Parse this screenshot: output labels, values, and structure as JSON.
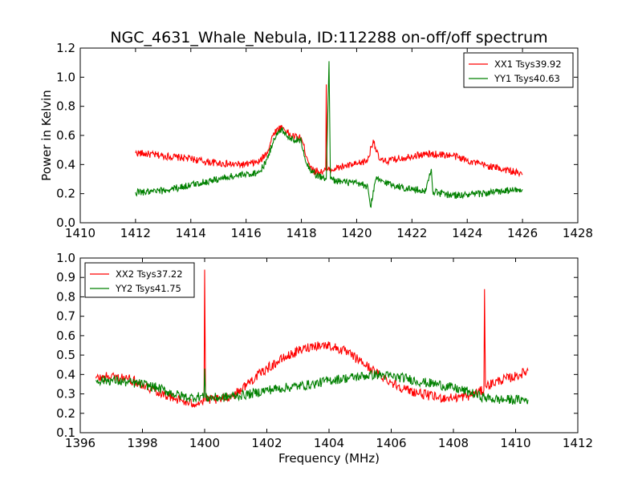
{
  "chart_data": [
    {
      "type": "line",
      "title": "NGC_4631_Whale_Nebula, ID:112288 on-off/off spectrum",
      "xlabel": "",
      "ylabel": "Power in Kelvin",
      "xlim": [
        1410,
        1428
      ],
      "ylim": [
        0.0,
        1.2
      ],
      "xticks": [
        "1410",
        "1412",
        "1414",
        "1416",
        "1418",
        "1420",
        "1422",
        "1424",
        "1426",
        "1428"
      ],
      "yticks": [
        "0.0",
        "0.2",
        "0.4",
        "0.6",
        "0.8",
        "1.0",
        "1.2"
      ],
      "grid": false,
      "legend_position": "top-right",
      "series": [
        {
          "name": "XX1 Tsys39.92",
          "color": "#ff0000",
          "points": [
            [
              1412.0,
              0.48
            ],
            [
              1412.5,
              0.47
            ],
            [
              1413.0,
              0.46
            ],
            [
              1413.5,
              0.45
            ],
            [
              1414.0,
              0.44
            ],
            [
              1414.5,
              0.42
            ],
            [
              1415.0,
              0.41
            ],
            [
              1415.5,
              0.4
            ],
            [
              1416.0,
              0.4
            ],
            [
              1416.5,
              0.42
            ],
            [
              1416.8,
              0.5
            ],
            [
              1417.0,
              0.62
            ],
            [
              1417.3,
              0.66
            ],
            [
              1417.6,
              0.6
            ],
            [
              1418.0,
              0.58
            ],
            [
              1418.2,
              0.45
            ],
            [
              1418.4,
              0.36
            ],
            [
              1418.7,
              0.35
            ],
            [
              1418.88,
              0.36
            ],
            [
              1418.9,
              0.95
            ],
            [
              1418.93,
              0.36
            ],
            [
              1419.2,
              0.37
            ],
            [
              1419.6,
              0.39
            ],
            [
              1420.0,
              0.4
            ],
            [
              1420.4,
              0.43
            ],
            [
              1420.6,
              0.57
            ],
            [
              1420.8,
              0.44
            ],
            [
              1421.0,
              0.42
            ],
            [
              1421.5,
              0.44
            ],
            [
              1422.0,
              0.46
            ],
            [
              1422.5,
              0.47
            ],
            [
              1423.0,
              0.47
            ],
            [
              1423.5,
              0.46
            ],
            [
              1424.0,
              0.43
            ],
            [
              1424.5,
              0.4
            ],
            [
              1425.0,
              0.38
            ],
            [
              1425.5,
              0.36
            ],
            [
              1426.0,
              0.33
            ]
          ]
        },
        {
          "name": "YY1 Tsys40.63",
          "color": "#008000",
          "points": [
            [
              1412.0,
              0.21
            ],
            [
              1412.5,
              0.21
            ],
            [
              1413.0,
              0.22
            ],
            [
              1413.5,
              0.24
            ],
            [
              1414.0,
              0.26
            ],
            [
              1414.5,
              0.28
            ],
            [
              1415.0,
              0.3
            ],
            [
              1415.5,
              0.32
            ],
            [
              1416.0,
              0.33
            ],
            [
              1416.5,
              0.35
            ],
            [
              1416.8,
              0.45
            ],
            [
              1417.0,
              0.58
            ],
            [
              1417.3,
              0.64
            ],
            [
              1417.6,
              0.58
            ],
            [
              1418.0,
              0.56
            ],
            [
              1418.2,
              0.4
            ],
            [
              1418.5,
              0.33
            ],
            [
              1418.9,
              0.3
            ],
            [
              1419.0,
              1.11
            ],
            [
              1419.05,
              0.3
            ],
            [
              1419.5,
              0.28
            ],
            [
              1420.0,
              0.27
            ],
            [
              1420.4,
              0.25
            ],
            [
              1420.5,
              0.11
            ],
            [
              1420.7,
              0.3
            ],
            [
              1421.0,
              0.28
            ],
            [
              1421.5,
              0.25
            ],
            [
              1422.0,
              0.23
            ],
            [
              1422.5,
              0.22
            ],
            [
              1422.7,
              0.37
            ],
            [
              1422.75,
              0.22
            ],
            [
              1423.0,
              0.2
            ],
            [
              1423.5,
              0.19
            ],
            [
              1424.0,
              0.19
            ],
            [
              1424.5,
              0.2
            ],
            [
              1425.0,
              0.21
            ],
            [
              1425.5,
              0.22
            ],
            [
              1426.0,
              0.23
            ]
          ]
        }
      ]
    },
    {
      "type": "line",
      "xlabel": "Frequency (MHz)",
      "ylabel": "",
      "xlim": [
        1396,
        1412
      ],
      "ylim": [
        0.1,
        1.0
      ],
      "xticks": [
        "1396",
        "1398",
        "1400",
        "1402",
        "1404",
        "1406",
        "1408",
        "1410",
        "1412"
      ],
      "yticks": [
        "0.1",
        "0.2",
        "0.3",
        "0.4",
        "0.5",
        "0.6",
        "0.7",
        "0.8",
        "0.9",
        "1.0"
      ],
      "grid": false,
      "legend_position": "top-left",
      "series": [
        {
          "name": "XX2 Tsys37.22",
          "color": "#ff0000",
          "points": [
            [
              1396.5,
              0.38
            ],
            [
              1397.0,
              0.39
            ],
            [
              1397.5,
              0.38
            ],
            [
              1398.0,
              0.35
            ],
            [
              1398.5,
              0.31
            ],
            [
              1399.0,
              0.28
            ],
            [
              1399.5,
              0.25
            ],
            [
              1399.98,
              0.26
            ],
            [
              1400.0,
              0.94
            ],
            [
              1400.03,
              0.27
            ],
            [
              1400.5,
              0.27
            ],
            [
              1401.0,
              0.3
            ],
            [
              1401.5,
              0.37
            ],
            [
              1402.0,
              0.43
            ],
            [
              1402.5,
              0.48
            ],
            [
              1403.0,
              0.52
            ],
            [
              1403.5,
              0.55
            ],
            [
              1404.0,
              0.55
            ],
            [
              1404.5,
              0.52
            ],
            [
              1405.0,
              0.47
            ],
            [
              1405.5,
              0.41
            ],
            [
              1406.0,
              0.36
            ],
            [
              1406.5,
              0.32
            ],
            [
              1407.0,
              0.3
            ],
            [
              1407.5,
              0.28
            ],
            [
              1408.0,
              0.28
            ],
            [
              1408.5,
              0.29
            ],
            [
              1408.98,
              0.32
            ],
            [
              1409.0,
              0.84
            ],
            [
              1409.03,
              0.34
            ],
            [
              1409.5,
              0.37
            ],
            [
              1410.0,
              0.39
            ],
            [
              1410.4,
              0.42
            ]
          ]
        },
        {
          "name": "YY2 Tsys41.75",
          "color": "#008000",
          "points": [
            [
              1396.5,
              0.37
            ],
            [
              1397.0,
              0.37
            ],
            [
              1397.5,
              0.36
            ],
            [
              1398.0,
              0.35
            ],
            [
              1398.5,
              0.33
            ],
            [
              1399.0,
              0.3
            ],
            [
              1399.5,
              0.28
            ],
            [
              1399.98,
              0.29
            ],
            [
              1400.0,
              0.43
            ],
            [
              1400.03,
              0.28
            ],
            [
              1400.5,
              0.28
            ],
            [
              1401.0,
              0.29
            ],
            [
              1401.5,
              0.3
            ],
            [
              1402.0,
              0.32
            ],
            [
              1402.5,
              0.33
            ],
            [
              1403.0,
              0.34
            ],
            [
              1403.5,
              0.35
            ],
            [
              1404.0,
              0.37
            ],
            [
              1404.5,
              0.38
            ],
            [
              1405.0,
              0.39
            ],
            [
              1405.5,
              0.4
            ],
            [
              1406.0,
              0.39
            ],
            [
              1406.5,
              0.38
            ],
            [
              1407.0,
              0.36
            ],
            [
              1407.5,
              0.35
            ],
            [
              1408.0,
              0.33
            ],
            [
              1408.5,
              0.31
            ],
            [
              1409.0,
              0.28
            ],
            [
              1409.5,
              0.27
            ],
            [
              1410.0,
              0.27
            ],
            [
              1410.4,
              0.27
            ]
          ]
        }
      ]
    }
  ]
}
